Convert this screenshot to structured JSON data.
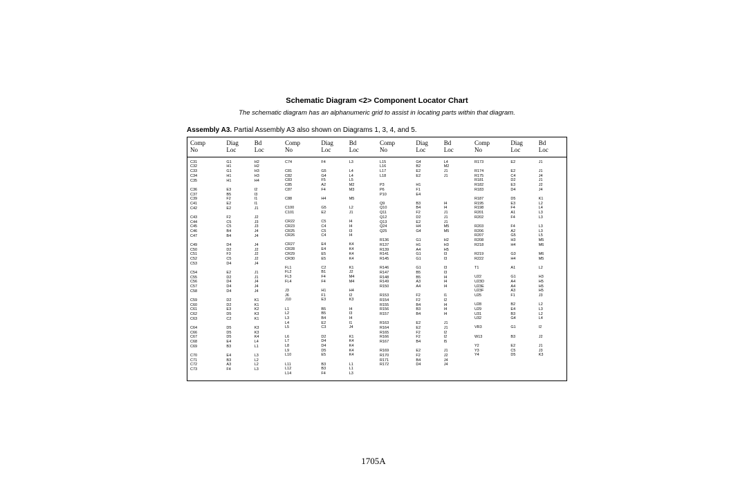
{
  "title": "Schematic Diagram <2> Component Locator Chart",
  "subtitle": "The schematic diagram has an alphanumeric grid to assist in locating parts within that diagram.",
  "assembly_bold": "Assembly A3.",
  "assembly_rest": "  Partial Assembly A3 also shown on Diagrams 1, 3, 4, and 5.",
  "footer": "1705A",
  "headers": {
    "c1a": "Comp",
    "c1b": "No",
    "c2a": "Diag",
    "c2b": "Loc",
    "c3a": "Bd",
    "c3b": "Loc"
  },
  "columns": [
    [
      [
        "C31",
        "G1",
        "H2"
      ],
      [
        "C32",
        "H1",
        "H2"
      ],
      [
        "C33",
        "G1",
        "H3"
      ],
      [
        "C34",
        "H1",
        "H3"
      ],
      [
        "C35",
        "H1",
        "H4"
      ],
      [],
      [
        "C36",
        "E3",
        "I2"
      ],
      [
        "C37",
        "B5",
        "I3"
      ],
      [
        "C39",
        "F2",
        "I1"
      ],
      [
        "C41",
        "E2",
        "I1"
      ],
      [
        "C42",
        "E2",
        "J1"
      ],
      [],
      [
        "C43",
        "F2",
        "J2"
      ],
      [
        "C44",
        "C5",
        "J3"
      ],
      [
        "C45",
        "C5",
        "J3"
      ],
      [
        "C46",
        "B4",
        "J4"
      ],
      [
        "C47",
        "B4",
        "J4"
      ],
      [],
      [
        "C49",
        "D4",
        "J4"
      ],
      [
        "C50",
        "D2",
        "J2"
      ],
      [
        "C51",
        "F3",
        "J2"
      ],
      [
        "C52",
        "C5",
        "J2"
      ],
      [
        "C53",
        "D4",
        "J4"
      ],
      [],
      [
        "C54",
        "E2",
        "J1"
      ],
      [
        "C55",
        "D2",
        "J1"
      ],
      [
        "C56",
        "D4",
        "J4"
      ],
      [
        "C57",
        "D4",
        "J4"
      ],
      [
        "C58",
        "D4",
        "J4"
      ],
      [],
      [
        "C59",
        "D2",
        "K1"
      ],
      [
        "C60",
        "D2",
        "K1"
      ],
      [
        "C61",
        "E3",
        "K2"
      ],
      [
        "C62",
        "D5",
        "K3"
      ],
      [
        "C63",
        "C2",
        "K1"
      ],
      [],
      [
        "C64",
        "D5",
        "K3"
      ],
      [
        "C66",
        "D5",
        "K3"
      ],
      [
        "C67",
        "D5",
        "K4"
      ],
      [
        "C68",
        "E4",
        "L4"
      ],
      [
        "C69",
        "B3",
        "L1"
      ],
      [],
      [
        "C70",
        "E4",
        "L3"
      ],
      [
        "C71",
        "B3",
        "L2"
      ],
      [
        "C72",
        "A3",
        "L2"
      ],
      [
        "C73",
        "F4",
        "L3"
      ]
    ],
    [
      [
        "C74",
        "F4",
        "L3"
      ],
      [],
      [
        "C81",
        "G5",
        "L4"
      ],
      [
        "C82",
        "G4",
        "L4"
      ],
      [
        "C83",
        "F5",
        "L5"
      ],
      [
        "C85",
        "A2",
        "M2"
      ],
      [
        "C87",
        "F4",
        "M3"
      ],
      [],
      [
        "C88",
        "H4",
        "M5"
      ],
      [],
      [
        "C100",
        "G5",
        "L2"
      ],
      [
        "C101",
        "E2",
        "J1"
      ],
      [],
      [
        "CR22",
        "C5",
        "I4"
      ],
      [
        "CR23",
        "C4",
        "I4"
      ],
      [
        "CR25",
        "C5",
        "I3"
      ],
      [
        "CR26",
        "C4",
        "I4"
      ],
      [],
      [
        "CR27",
        "E4",
        "K4"
      ],
      [
        "CR28",
        "E4",
        "K4"
      ],
      [
        "CR29",
        "E5",
        "K4"
      ],
      [
        "CR30",
        "E5",
        "K4"
      ],
      [],
      [
        "FL1",
        "C2",
        "K1"
      ],
      [
        "FL2",
        "B1",
        "J2"
      ],
      [
        "FL3",
        "F4",
        "M4"
      ],
      [
        "FL4",
        "F4",
        "M4"
      ],
      [],
      [
        "J3",
        "H1",
        "H4"
      ],
      [
        "J6",
        "F1",
        "I2"
      ],
      [
        "J10",
        "E3",
        "K3"
      ],
      [],
      [
        "L1",
        "B5",
        "I4"
      ],
      [
        "L2",
        "B5",
        "I3"
      ],
      [
        "L3",
        "B4",
        "I4"
      ],
      [
        "L4",
        "E2",
        "I1"
      ],
      [
        "L5",
        "C3",
        "J4"
      ],
      [],
      [
        "L6",
        "D2",
        "K1"
      ],
      [
        "L7",
        "D4",
        "K4"
      ],
      [
        "L8",
        "D4",
        "K4"
      ],
      [
        "L9",
        "D5",
        "K4"
      ],
      [
        "L10",
        "E5",
        "K4"
      ],
      [],
      [
        "L11",
        "B3",
        "L1"
      ],
      [
        "L12",
        "B3",
        "L1"
      ],
      [
        "L14",
        "F4",
        "L3"
      ]
    ],
    [
      [
        "L15",
        "G4",
        "L4"
      ],
      [
        "L16",
        "B2",
        "M2"
      ],
      [
        "L17",
        "E2",
        "J1"
      ],
      [
        "L18",
        "E2",
        "J1"
      ],
      [],
      [
        "P3",
        "H1",
        ""
      ],
      [
        "P6",
        "F1",
        ""
      ],
      [
        "P10",
        "E4",
        ""
      ],
      [],
      [
        "Q9",
        "B3",
        "I4"
      ],
      [
        "Q10",
        "B4",
        "I4"
      ],
      [
        "Q11",
        "F2",
        "J1"
      ],
      [
        "Q12",
        "D2",
        "J1"
      ],
      [
        "Q13",
        "E2",
        "J1"
      ],
      [
        "Q24",
        "H4",
        "M5"
      ],
      [
        "Q25",
        "G4",
        "M5"
      ],
      [],
      [
        "R136",
        "G1",
        "H2"
      ],
      [
        "R137",
        "H1",
        "H3"
      ],
      [
        "R139",
        "A4",
        "H5"
      ],
      [
        "R141",
        "G1",
        "I3"
      ],
      [
        "R145",
        "G1",
        "I3"
      ],
      [],
      [
        "R146",
        "G1",
        "I3"
      ],
      [
        "R147",
        "B5",
        "I3"
      ],
      [
        "R148",
        "B5",
        "I4"
      ],
      [
        "R149",
        "A3",
        "I4"
      ],
      [
        "R150",
        "A4",
        "I4"
      ],
      [],
      [
        "R153",
        "F2",
        "I1"
      ],
      [
        "R154",
        "F2",
        "I2"
      ],
      [
        "R155",
        "B4",
        "I4"
      ],
      [
        "R156",
        "B3",
        "I4"
      ],
      [
        "R157",
        "B4",
        "I4"
      ],
      [],
      [
        "R163",
        "E2",
        "J1"
      ],
      [
        "R164",
        "E2",
        "J1"
      ],
      [
        "R165",
        "F2",
        "I2"
      ],
      [
        "R166",
        "F2",
        "I2"
      ],
      [
        "R167",
        "B4",
        "I5"
      ],
      [],
      [
        "R169",
        "E2",
        "J1"
      ],
      [
        "R170",
        "F2",
        "J2"
      ],
      [
        "R171",
        "B4",
        "J4"
      ],
      [
        "R172",
        "D4",
        "J4"
      ]
    ],
    [
      [
        "R173",
        "E2",
        "J1"
      ],
      [],
      [
        "R174",
        "E2",
        "J1"
      ],
      [
        "R175",
        "C4",
        "J4"
      ],
      [
        "R181",
        "D2",
        "J1"
      ],
      [
        "R182",
        "E3",
        "J2"
      ],
      [
        "R183",
        "D4",
        "J4"
      ],
      [],
      [
        "R187",
        "D5",
        "K1"
      ],
      [
        "R195",
        "E3",
        "L2"
      ],
      [
        "R198",
        "F4",
        "L4"
      ],
      [
        "R201",
        "A1",
        "L3"
      ],
      [
        "R202",
        "F4",
        "L3"
      ],
      [],
      [
        "R203",
        "F4",
        "L3"
      ],
      [
        "R206",
        "A2",
        "L3"
      ],
      [
        "R207",
        "G5",
        "L5"
      ],
      [
        "R208",
        "H3",
        "M5"
      ],
      [
        "R218",
        "H4",
        "M6"
      ],
      [],
      [
        "R219",
        "G3",
        "M6"
      ],
      [
        "R222",
        "H4",
        "M5"
      ],
      [],
      [
        "T1",
        "A1",
        "L2"
      ],
      [],
      [
        "U22",
        "G1",
        "H3"
      ],
      [
        "U23D",
        "A4",
        "H5"
      ],
      [
        "U23E",
        "A4",
        "H5"
      ],
      [
        "U23F",
        "A3",
        "H5"
      ],
      [
        "U25",
        "F1",
        "J3"
      ],
      [],
      [
        "U28",
        "B2",
        "L2"
      ],
      [
        "U29",
        "E4",
        "L3"
      ],
      [
        "U31",
        "B3",
        "L2"
      ],
      [
        "U32",
        "G4",
        "L4"
      ],
      [],
      [
        "VR3",
        "G1",
        "I2"
      ],
      [],
      [
        "W13",
        "B3",
        "J2"
      ],
      [],
      [
        "Y2",
        "E2",
        "J1"
      ],
      [
        "Y3",
        "C5",
        "J3"
      ],
      [
        "Y4",
        "D5",
        "K3"
      ]
    ]
  ]
}
